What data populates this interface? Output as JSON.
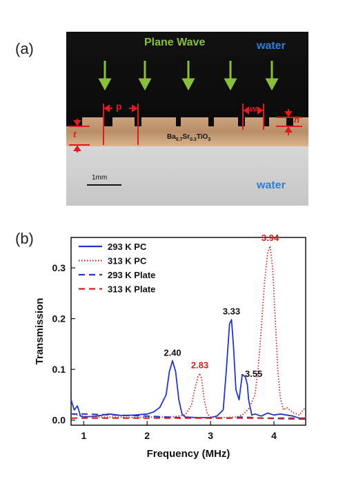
{
  "panel_a": {
    "label": "(a)",
    "plane_wave_label": "Plane Wave",
    "water_top_label": "water",
    "water_bottom_label": "water",
    "dim_p": "p",
    "dim_w": "w",
    "dim_h": "h",
    "dim_t": "t",
    "material_base": "Ba",
    "material_sub1": "0.7",
    "material_mid": "Sr",
    "material_sub2": "0.3",
    "material_end": "TiO",
    "material_sub3": "3",
    "scale_bar_label": "1mm",
    "colors": {
      "arrow": "#8bbf3a",
      "water_label": "#2f7fd6",
      "dimension": "#e01b1b"
    }
  },
  "panel_b": {
    "label": "(b)"
  },
  "chart_data": {
    "type": "line",
    "xlabel": "Frequency (MHz)",
    "ylabel": "Transmission",
    "xlim": [
      0.8,
      4.5
    ],
    "ylim": [
      -0.01,
      0.36
    ],
    "xticks": [
      1,
      2,
      3,
      4
    ],
    "xtick_labels": [
      "1",
      "2",
      "3",
      "4"
    ],
    "yticks": [
      0.0,
      0.1,
      0.2,
      0.3
    ],
    "ytick_labels": [
      "0.0",
      "0.1",
      "0.2",
      "0.3"
    ],
    "grid": false,
    "legend_position": "top-left",
    "series": [
      {
        "name": "293 K PC",
        "color": "#1f35c8",
        "style": "solid",
        "x": [
          0.8,
          0.85,
          0.9,
          0.95,
          1.0,
          1.2,
          1.4,
          1.6,
          1.8,
          2.0,
          2.1,
          2.2,
          2.3,
          2.35,
          2.4,
          2.45,
          2.5,
          2.55,
          2.6,
          2.8,
          3.0,
          3.1,
          3.2,
          3.25,
          3.3,
          3.33,
          3.36,
          3.4,
          3.45,
          3.5,
          3.55,
          3.58,
          3.6,
          3.65,
          3.7,
          3.8,
          3.9,
          4.0,
          4.1,
          4.2,
          4.3,
          4.4,
          4.5
        ],
        "y": [
          0.04,
          0.02,
          0.028,
          0.008,
          0.006,
          0.008,
          0.012,
          0.009,
          0.01,
          0.012,
          0.016,
          0.025,
          0.05,
          0.095,
          0.117,
          0.095,
          0.04,
          0.012,
          0.006,
          0.005,
          0.005,
          0.008,
          0.02,
          0.1,
          0.19,
          0.198,
          0.15,
          0.06,
          0.04,
          0.09,
          0.085,
          0.07,
          0.04,
          0.01,
          0.012,
          0.008,
          0.014,
          0.01,
          0.012,
          0.01,
          0.008,
          0.004,
          0.002
        ]
      },
      {
        "name": "313 K PC",
        "color": "#d21f1f",
        "style": "dotted",
        "x": [
          0.8,
          0.9,
          1.0,
          1.2,
          1.5,
          1.8,
          2.0,
          2.4,
          2.6,
          2.7,
          2.75,
          2.8,
          2.83,
          2.86,
          2.9,
          2.95,
          3.0,
          3.2,
          3.4,
          3.5,
          3.6,
          3.7,
          3.75,
          3.8,
          3.85,
          3.9,
          3.94,
          3.98,
          4.02,
          4.06,
          4.1,
          4.15,
          4.2,
          4.3,
          4.4,
          4.5
        ],
        "y": [
          0.012,
          0.01,
          0.008,
          0.006,
          0.006,
          0.005,
          0.006,
          0.006,
          0.01,
          0.03,
          0.06,
          0.085,
          0.092,
          0.08,
          0.04,
          0.012,
          0.006,
          0.005,
          0.006,
          0.01,
          0.022,
          0.05,
          0.1,
          0.18,
          0.27,
          0.33,
          0.343,
          0.3,
          0.2,
          0.1,
          0.045,
          0.02,
          0.025,
          0.015,
          0.01,
          0.026
        ]
      },
      {
        "name": "293 K Plate",
        "color": "#1f35c8",
        "style": "dashed",
        "x": [
          0.8,
          1.0,
          1.5,
          2.0,
          2.5,
          3.0,
          3.3,
          3.5,
          3.8,
          4.0,
          4.5
        ],
        "y": [
          0.012,
          0.012,
          0.01,
          0.008,
          0.005,
          0.004,
          0.004,
          0.006,
          0.004,
          0.003,
          0.002
        ]
      },
      {
        "name": "313 K Plate",
        "color": "#d21f1f",
        "style": "dashed",
        "x": [
          0.8,
          1.0,
          1.5,
          2.0,
          2.5,
          3.0,
          3.3,
          3.5,
          3.8,
          4.0,
          4.5
        ],
        "y": [
          0.004,
          0.004,
          0.004,
          0.004,
          0.004,
          0.004,
          0.004,
          0.004,
          0.004,
          0.004,
          0.004
        ]
      }
    ],
    "annotations": [
      {
        "text": "2.40",
        "x": 2.4,
        "y": 0.127,
        "color": "#111111"
      },
      {
        "text": "2.83",
        "x": 2.83,
        "y": 0.102,
        "color": "#d21f1f"
      },
      {
        "text": "3.33",
        "x": 3.33,
        "y": 0.208,
        "color": "#111111"
      },
      {
        "text": "3.55",
        "x": 3.68,
        "y": 0.085,
        "color": "#111111"
      },
      {
        "text": "3.94",
        "x": 3.94,
        "y": 0.353,
        "color": "#d21f1f"
      }
    ]
  }
}
